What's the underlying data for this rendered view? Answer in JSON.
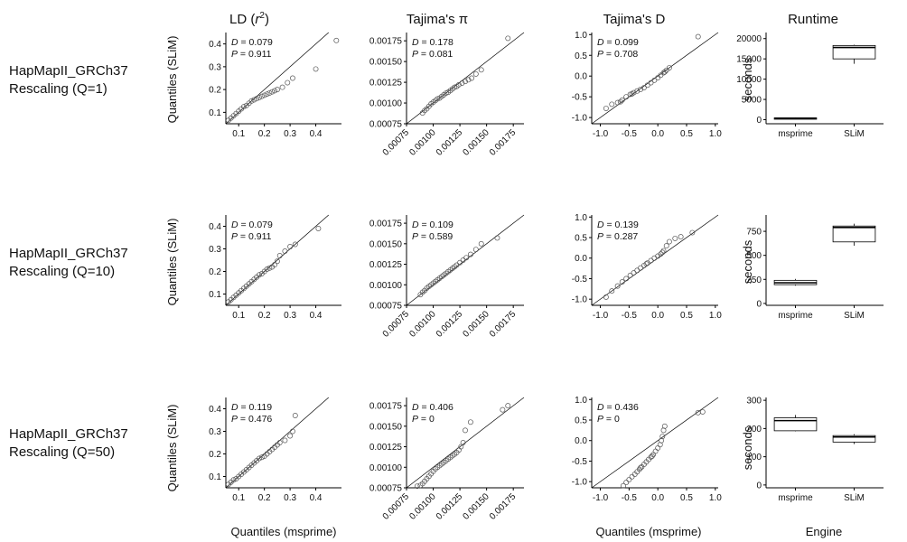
{
  "columns": [
    "LD (r²)",
    "Tajima's π",
    "Tajima's D",
    "Runtime"
  ],
  "rows": [
    {
      "name": "HapMapII_GRCh37",
      "sub": "Rescaling (Q=1)"
    },
    {
      "name": "HapMapII_GRCh37",
      "sub": "Rescaling (Q=10)"
    },
    {
      "name": "HapMapII_GRCh37",
      "sub": "Rescaling (Q=50)"
    }
  ],
  "axis_titles": {
    "y_qq": "Quantiles (SLiM)",
    "x_qq": "Quantiles (msprime)",
    "y_runtime": "seconds",
    "x_runtime": "Engine"
  },
  "colors": {
    "points": "#555555",
    "line": "#000000",
    "box": "#000000",
    "axis": "#000000"
  },
  "chart_data": [
    {
      "type": "scatter",
      "panel": "LD Q=1",
      "xlim": [
        0.05,
        0.5
      ],
      "ylim": [
        0.05,
        0.45
      ],
      "xticks": [
        0.1,
        0.2,
        0.3,
        0.4
      ],
      "yticks": [
        0.1,
        0.2,
        0.3,
        0.4
      ],
      "tick_format": 1,
      "annotation": {
        "D": "0.079",
        "P": "0.911"
      },
      "points": [
        [
          0.06,
          0.065
        ],
        [
          0.07,
          0.075
        ],
        [
          0.08,
          0.085
        ],
        [
          0.09,
          0.095
        ],
        [
          0.1,
          0.105
        ],
        [
          0.11,
          0.115
        ],
        [
          0.12,
          0.125
        ],
        [
          0.13,
          0.13
        ],
        [
          0.14,
          0.14
        ],
        [
          0.15,
          0.15
        ],
        [
          0.16,
          0.155
        ],
        [
          0.17,
          0.16
        ],
        [
          0.18,
          0.165
        ],
        [
          0.19,
          0.17
        ],
        [
          0.2,
          0.175
        ],
        [
          0.21,
          0.18
        ],
        [
          0.22,
          0.185
        ],
        [
          0.23,
          0.19
        ],
        [
          0.24,
          0.195
        ],
        [
          0.25,
          0.2
        ],
        [
          0.27,
          0.21
        ],
        [
          0.29,
          0.23
        ],
        [
          0.31,
          0.25
        ],
        [
          0.4,
          0.29
        ],
        [
          0.48,
          0.415
        ]
      ]
    },
    {
      "type": "scatter",
      "panel": "pi Q=1",
      "xlim": [
        0.00075,
        0.00185
      ],
      "ylim": [
        0.00075,
        0.00185
      ],
      "xticks": [
        0.00075,
        0.001,
        0.00125,
        0.0015,
        0.00175
      ],
      "yticks": [
        0.00075,
        0.001,
        0.00125,
        0.0015,
        0.00175
      ],
      "tick_format": 5,
      "x_rotated": true,
      "annotation": {
        "D": "0.178",
        "P": "0.081"
      },
      "points": [
        [
          0.0009,
          0.00088
        ],
        [
          0.00092,
          0.00091
        ],
        [
          0.00094,
          0.00093
        ],
        [
          0.00096,
          0.00096
        ],
        [
          0.00098,
          0.00099
        ],
        [
          0.001,
          0.00101
        ],
        [
          0.00102,
          0.00103
        ],
        [
          0.00104,
          0.00105
        ],
        [
          0.00106,
          0.00106
        ],
        [
          0.00108,
          0.00108
        ],
        [
          0.0011,
          0.0011
        ],
        [
          0.00112,
          0.00112
        ],
        [
          0.00114,
          0.00113
        ],
        [
          0.00116,
          0.00115
        ],
        [
          0.00118,
          0.00117
        ],
        [
          0.0012,
          0.00119
        ],
        [
          0.00122,
          0.0012
        ],
        [
          0.00124,
          0.00122
        ],
        [
          0.00127,
          0.00124
        ],
        [
          0.0013,
          0.00126
        ],
        [
          0.00133,
          0.00128
        ],
        [
          0.00136,
          0.0013
        ],
        [
          0.0014,
          0.00135
        ],
        [
          0.00145,
          0.0014
        ],
        [
          0.0017,
          0.00178
        ]
      ]
    },
    {
      "type": "scatter",
      "panel": "D Q=1",
      "xlim": [
        -1.15,
        1.05
      ],
      "ylim": [
        -1.15,
        1.05
      ],
      "xticks": [
        -1.0,
        -0.5,
        0.0,
        0.5,
        1.0
      ],
      "yticks": [
        -1.0,
        -0.5,
        0.0,
        0.5,
        1.0
      ],
      "tick_format": 1,
      "annotation": {
        "D": "0.099",
        "P": "0.708"
      },
      "points": [
        [
          -0.9,
          -0.78
        ],
        [
          -0.8,
          -0.68
        ],
        [
          -0.7,
          -0.64
        ],
        [
          -0.62,
          -0.58
        ],
        [
          -0.55,
          -0.5
        ],
        [
          -0.48,
          -0.44
        ],
        [
          -0.42,
          -0.4
        ],
        [
          -0.36,
          -0.36
        ],
        [
          -0.3,
          -0.32
        ],
        [
          -0.24,
          -0.28
        ],
        [
          -0.18,
          -0.22
        ],
        [
          -0.12,
          -0.16
        ],
        [
          -0.06,
          -0.1
        ],
        [
          0.0,
          -0.04
        ],
        [
          0.05,
          0.02
        ],
        [
          0.1,
          0.08
        ],
        [
          0.15,
          0.14
        ],
        [
          0.2,
          0.2
        ],
        [
          -0.65,
          -0.62
        ],
        [
          -0.45,
          -0.43
        ],
        [
          0.12,
          0.1
        ],
        [
          0.7,
          0.95
        ]
      ]
    },
    {
      "type": "box",
      "panel": "Runtime Q=1",
      "categories": [
        "msprime",
        "SLiM"
      ],
      "ylim": [
        -1000,
        21500
      ],
      "yticks": [
        0,
        5000,
        10000,
        15000,
        20000
      ],
      "tick_format": 0,
      "boxes": [
        {
          "min": 150,
          "q1": 250,
          "median": 350,
          "q3": 450,
          "max": 550
        },
        {
          "min": 13800,
          "q1": 15000,
          "median": 17800,
          "q3": 18300,
          "max": 18500
        }
      ]
    },
    {
      "type": "scatter",
      "panel": "LD Q=10",
      "xlim": [
        0.05,
        0.5
      ],
      "ylim": [
        0.05,
        0.45
      ],
      "xticks": [
        0.1,
        0.2,
        0.3,
        0.4
      ],
      "yticks": [
        0.1,
        0.2,
        0.3,
        0.4
      ],
      "tick_format": 1,
      "annotation": {
        "D": "0.079",
        "P": "0.911"
      },
      "points": [
        [
          0.06,
          0.065
        ],
        [
          0.07,
          0.075
        ],
        [
          0.08,
          0.085
        ],
        [
          0.09,
          0.095
        ],
        [
          0.1,
          0.105
        ],
        [
          0.11,
          0.115
        ],
        [
          0.12,
          0.125
        ],
        [
          0.13,
          0.135
        ],
        [
          0.14,
          0.145
        ],
        [
          0.15,
          0.155
        ],
        [
          0.16,
          0.165
        ],
        [
          0.17,
          0.175
        ],
        [
          0.18,
          0.185
        ],
        [
          0.19,
          0.19
        ],
        [
          0.2,
          0.2
        ],
        [
          0.21,
          0.21
        ],
        [
          0.22,
          0.215
        ],
        [
          0.23,
          0.22
        ],
        [
          0.24,
          0.23
        ],
        [
          0.25,
          0.245
        ],
        [
          0.26,
          0.27
        ],
        [
          0.28,
          0.29
        ],
        [
          0.3,
          0.31
        ],
        [
          0.32,
          0.32
        ],
        [
          0.41,
          0.39
        ]
      ]
    },
    {
      "type": "scatter",
      "panel": "pi Q=10",
      "xlim": [
        0.00075,
        0.00185
      ],
      "ylim": [
        0.00075,
        0.00185
      ],
      "xticks": [
        0.00075,
        0.001,
        0.00125,
        0.0015,
        0.00175
      ],
      "yticks": [
        0.00075,
        0.001,
        0.00125,
        0.0015,
        0.00175
      ],
      "tick_format": 5,
      "x_rotated": true,
      "annotation": {
        "D": "0.109",
        "P": "0.589"
      },
      "points": [
        [
          0.00088,
          0.00088
        ],
        [
          0.0009,
          0.00091
        ],
        [
          0.00092,
          0.00093
        ],
        [
          0.00094,
          0.00096
        ],
        [
          0.00096,
          0.00098
        ],
        [
          0.00098,
          0.001
        ],
        [
          0.001,
          0.00102
        ],
        [
          0.00102,
          0.00104
        ],
        [
          0.00104,
          0.00106
        ],
        [
          0.00106,
          0.00108
        ],
        [
          0.00108,
          0.0011
        ],
        [
          0.0011,
          0.00112
        ],
        [
          0.00112,
          0.00114
        ],
        [
          0.00114,
          0.00116
        ],
        [
          0.00116,
          0.00118
        ],
        [
          0.00118,
          0.0012
        ],
        [
          0.0012,
          0.00122
        ],
        [
          0.00122,
          0.00124
        ],
        [
          0.00125,
          0.00127
        ],
        [
          0.00128,
          0.0013
        ],
        [
          0.00131,
          0.00133
        ],
        [
          0.00135,
          0.00137
        ],
        [
          0.0014,
          0.00143
        ],
        [
          0.00145,
          0.0015
        ],
        [
          0.0016,
          0.00157
        ]
      ]
    },
    {
      "type": "scatter",
      "panel": "D Q=10",
      "xlim": [
        -1.15,
        1.05
      ],
      "ylim": [
        -1.15,
        1.05
      ],
      "xticks": [
        -1.0,
        -0.5,
        0.0,
        0.5,
        1.0
      ],
      "yticks": [
        -1.0,
        -0.5,
        0.0,
        0.5,
        1.0
      ],
      "tick_format": 1,
      "annotation": {
        "D": "0.139",
        "P": "0.287"
      },
      "points": [
        [
          -0.9,
          -0.95
        ],
        [
          -0.8,
          -0.8
        ],
        [
          -0.7,
          -0.68
        ],
        [
          -0.62,
          -0.58
        ],
        [
          -0.55,
          -0.5
        ],
        [
          -0.48,
          -0.42
        ],
        [
          -0.42,
          -0.36
        ],
        [
          -0.36,
          -0.3
        ],
        [
          -0.3,
          -0.24
        ],
        [
          -0.24,
          -0.18
        ],
        [
          -0.18,
          -0.12
        ],
        [
          -0.12,
          -0.06
        ],
        [
          -0.06,
          0.0
        ],
        [
          0.0,
          0.05
        ],
        [
          0.05,
          0.1
        ],
        [
          0.1,
          0.18
        ],
        [
          0.15,
          0.3
        ],
        [
          0.2,
          0.4
        ],
        [
          0.3,
          0.48
        ],
        [
          0.4,
          0.52
        ],
        [
          0.6,
          0.62
        ],
        [
          -0.2,
          -0.14
        ],
        [
          0.08,
          0.14
        ]
      ]
    },
    {
      "type": "box",
      "panel": "Runtime Q=10",
      "categories": [
        "msprime",
        "SLiM"
      ],
      "ylim": [
        -20,
        920
      ],
      "yticks": [
        0,
        250,
        500,
        750
      ],
      "tick_format": 0,
      "boxes": [
        {
          "min": 185,
          "q1": 195,
          "median": 215,
          "q3": 240,
          "max": 255
        },
        {
          "min": 600,
          "q1": 640,
          "median": 790,
          "q3": 805,
          "max": 830
        }
      ]
    },
    {
      "type": "scatter",
      "panel": "LD Q=50",
      "xlim": [
        0.05,
        0.5
      ],
      "ylim": [
        0.05,
        0.45
      ],
      "xticks": [
        0.1,
        0.2,
        0.3,
        0.4
      ],
      "yticks": [
        0.1,
        0.2,
        0.3,
        0.4
      ],
      "tick_format": 1,
      "annotation": {
        "D": "0.119",
        "P": "0.476"
      },
      "points": [
        [
          0.06,
          0.065
        ],
        [
          0.07,
          0.075
        ],
        [
          0.08,
          0.085
        ],
        [
          0.09,
          0.09
        ],
        [
          0.1,
          0.1
        ],
        [
          0.11,
          0.11
        ],
        [
          0.12,
          0.12
        ],
        [
          0.13,
          0.13
        ],
        [
          0.14,
          0.14
        ],
        [
          0.15,
          0.15
        ],
        [
          0.16,
          0.16
        ],
        [
          0.17,
          0.17
        ],
        [
          0.18,
          0.18
        ],
        [
          0.19,
          0.185
        ],
        [
          0.2,
          0.19
        ],
        [
          0.21,
          0.2
        ],
        [
          0.22,
          0.21
        ],
        [
          0.23,
          0.22
        ],
        [
          0.24,
          0.23
        ],
        [
          0.25,
          0.24
        ],
        [
          0.26,
          0.25
        ],
        [
          0.28,
          0.26
        ],
        [
          0.3,
          0.28
        ],
        [
          0.31,
          0.3
        ],
        [
          0.32,
          0.37
        ]
      ]
    },
    {
      "type": "scatter",
      "panel": "pi Q=50",
      "xlim": [
        0.00075,
        0.00185
      ],
      "ylim": [
        0.00075,
        0.00185
      ],
      "xticks": [
        0.00075,
        0.001,
        0.00125,
        0.0015,
        0.00175
      ],
      "yticks": [
        0.00075,
        0.001,
        0.00125,
        0.0015,
        0.00175
      ],
      "tick_format": 5,
      "x_rotated": true,
      "annotation": {
        "D": "0.406",
        "P": "0"
      },
      "points": [
        [
          0.00085,
          0.00077
        ],
        [
          0.00088,
          0.00078
        ],
        [
          0.0009,
          0.0008
        ],
        [
          0.00092,
          0.00083
        ],
        [
          0.00094,
          0.00086
        ],
        [
          0.00096,
          0.00089
        ],
        [
          0.00098,
          0.00092
        ],
        [
          0.001,
          0.00095
        ],
        [
          0.00102,
          0.00098
        ],
        [
          0.00104,
          0.001
        ],
        [
          0.00106,
          0.00102
        ],
        [
          0.00108,
          0.00104
        ],
        [
          0.0011,
          0.00106
        ],
        [
          0.00112,
          0.00108
        ],
        [
          0.00114,
          0.0011
        ],
        [
          0.00116,
          0.00112
        ],
        [
          0.00118,
          0.00114
        ],
        [
          0.0012,
          0.00116
        ],
        [
          0.00122,
          0.00118
        ],
        [
          0.00124,
          0.00121
        ],
        [
          0.00126,
          0.00125
        ],
        [
          0.00128,
          0.0013
        ],
        [
          0.0013,
          0.00145
        ],
        [
          0.00135,
          0.00155
        ],
        [
          0.00165,
          0.0017
        ],
        [
          0.0017,
          0.00175
        ]
      ]
    },
    {
      "type": "scatter",
      "panel": "D Q=50",
      "xlim": [
        -1.15,
        1.05
      ],
      "ylim": [
        -1.15,
        1.05
      ],
      "xticks": [
        -1.0,
        -0.5,
        0.0,
        0.5,
        1.0
      ],
      "yticks": [
        -1.0,
        -0.5,
        0.0,
        0.5,
        1.0
      ],
      "tick_format": 1,
      "annotation": {
        "D": "0.436",
        "P": "0"
      },
      "points": [
        [
          -0.6,
          -1.1
        ],
        [
          -0.55,
          -1.02
        ],
        [
          -0.5,
          -0.95
        ],
        [
          -0.45,
          -0.88
        ],
        [
          -0.4,
          -0.82
        ],
        [
          -0.36,
          -0.76
        ],
        [
          -0.32,
          -0.7
        ],
        [
          -0.28,
          -0.64
        ],
        [
          -0.24,
          -0.58
        ],
        [
          -0.2,
          -0.52
        ],
        [
          -0.16,
          -0.46
        ],
        [
          -0.12,
          -0.4
        ],
        [
          -0.08,
          -0.34
        ],
        [
          -0.04,
          -0.26
        ],
        [
          0.0,
          -0.18
        ],
        [
          0.04,
          -0.1
        ],
        [
          0.06,
          0.0
        ],
        [
          0.08,
          0.1
        ],
        [
          0.1,
          0.25
        ],
        [
          0.12,
          0.35
        ],
        [
          0.7,
          0.68
        ],
        [
          0.78,
          0.7
        ],
        [
          -0.3,
          -0.66
        ],
        [
          -0.1,
          -0.38
        ]
      ]
    },
    {
      "type": "box",
      "panel": "Runtime Q=50",
      "categories": [
        "msprime",
        "SLiM"
      ],
      "ylim": [
        -10,
        310
      ],
      "yticks": [
        0,
        100,
        200,
        300
      ],
      "tick_format": 0,
      "boxes": [
        {
          "min": 190,
          "q1": 192,
          "median": 228,
          "q3": 238,
          "max": 248
        },
        {
          "min": 145,
          "q1": 152,
          "median": 170,
          "q3": 175,
          "max": 180
        }
      ]
    }
  ]
}
